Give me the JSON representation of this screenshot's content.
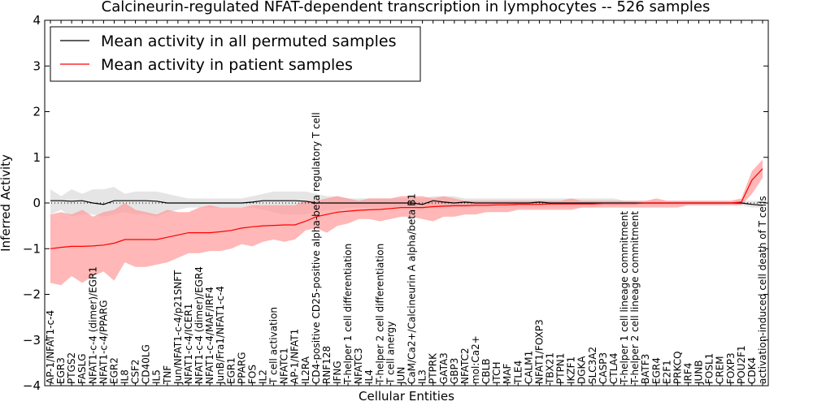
{
  "chart_data": {
    "type": "line",
    "title": "Calcineurin-regulated NFAT-dependent transcription in lymphocytes -- 526 samples",
    "xlabel": "Cellular Entities",
    "ylabel": "Inferred Activity",
    "ylim": [
      -4,
      4
    ],
    "yticks": [
      -4,
      -3,
      -2,
      -1,
      0,
      1,
      2,
      3,
      4
    ],
    "legend_position": "top-left",
    "categories": [
      "AP-1/NFAT1-c-4",
      "EGR3",
      "PTGS2",
      "FASLG",
      "NFAT1-c-4 (dimer)/EGR1",
      "NFAT1-c-4/PPARG",
      "EGR2",
      "IL8",
      "CSF2",
      "CD40LG",
      "IL5",
      "TNF",
      "Jun/NFAT1-c-4/p21SNFT",
      "NFAT1-c-4/ICER1",
      "NFAT1-c-4 (dimer)/EGR4",
      "NFAT1-c-4/MAF/IRF4",
      "JunB/Fra1/NFAT1-c-4",
      "EGR1",
      "PPARG",
      "FOS",
      "IL2",
      "T cell activation",
      "NFATC1",
      "AP-1/NFAT1",
      "IL2RA",
      "CD4-positive CD25-positive alpha-beta regulatory T cell",
      "RNF128",
      "IFNG",
      "T-helper 1 cell differentiation",
      "NFATC3",
      "IL4",
      "T-helper 2 cell differentiation",
      "T cell anergy",
      "JUN",
      "CaM/Ca2+/Calcineurin A alpha/beta B1",
      "IL3",
      "PTPRK",
      "GATA3",
      "GBP3",
      "NFATC2",
      "mol:Ca2+",
      "CBLB",
      "ITCH",
      "MAF",
      "TLE4",
      "CALM1",
      "NFAT1/FOXP3",
      "TBX21",
      "PTPN1",
      "IKZF1",
      "DGKA",
      "SLC3A2",
      "CASP3",
      "CTLA4",
      "T-helper 1 cell lineage commitment",
      "T-helper 2 cell lineage commitment",
      "BATF3",
      "EGR4",
      "E2F1",
      "PRKCQ",
      "IRF4",
      "JUNB",
      "FOSL1",
      "CREM",
      "FOXP3",
      "POU2F1",
      "CDK4",
      "activation-induced cell death of T cells"
    ],
    "series": [
      {
        "name": "Mean activity in all permuted samples",
        "color": "#000000",
        "values": [
          0.05,
          0.05,
          0.04,
          0.05,
          0.0,
          -0.03,
          0.05,
          0.05,
          0.05,
          0.05,
          0.04,
          0.0,
          0.0,
          0.0,
          0.0,
          0.0,
          0.0,
          0.0,
          0.0,
          0.02,
          0.05,
          0.05,
          0.05,
          0.05,
          0.04,
          0.0,
          0.0,
          0.0,
          0.0,
          0.0,
          0.0,
          0.0,
          0.0,
          0.0,
          0.0,
          -0.03,
          0.05,
          0.02,
          0.0,
          0.02,
          0.0,
          0.0,
          0.0,
          0.0,
          0.0,
          0.0,
          0.02,
          0.0,
          0.0,
          0.0,
          0.0,
          0.0,
          0.0,
          0.0,
          0.0,
          0.0,
          0.0,
          0.0,
          0.0,
          0.0,
          0.0,
          0.0,
          0.0,
          0.0,
          0.0,
          0.0,
          -0.03,
          -0.05
        ],
        "band_upper": [
          0.3,
          0.15,
          0.3,
          0.2,
          0.3,
          0.3,
          0.35,
          0.2,
          0.25,
          0.25,
          0.25,
          0.2,
          0.15,
          0.1,
          0.1,
          0.1,
          0.1,
          0.1,
          0.1,
          0.15,
          0.2,
          0.25,
          0.25,
          0.25,
          0.25,
          0.2,
          0.15,
          0.15,
          0.1,
          0.1,
          0.1,
          0.1,
          0.1,
          0.1,
          0.1,
          0.1,
          0.15,
          0.15,
          0.15,
          0.1,
          0.1,
          0.1,
          0.1,
          0.1,
          0.1,
          0.1,
          0.1,
          0.1,
          0.1,
          0.1,
          0.1,
          0.1,
          0.1,
          0.1,
          0.05,
          0.05,
          0.05,
          0.05,
          0.05,
          0.05,
          0.05,
          0.05,
          0.05,
          0.05,
          0.05,
          0.05,
          0.05,
          0.05
        ],
        "band_lower": [
          -0.25,
          -0.15,
          -0.3,
          -0.25,
          -0.25,
          -0.3,
          -0.25,
          -0.2,
          -0.25,
          -0.25,
          -0.3,
          -0.2,
          -0.15,
          -0.1,
          -0.1,
          -0.1,
          -0.1,
          -0.1,
          -0.1,
          -0.1,
          -0.15,
          -0.2,
          -0.25,
          -0.25,
          -0.25,
          -0.2,
          -0.15,
          -0.15,
          -0.1,
          -0.1,
          -0.1,
          -0.1,
          -0.1,
          -0.1,
          -0.1,
          -0.15,
          -0.1,
          -0.1,
          -0.1,
          -0.1,
          -0.1,
          -0.1,
          -0.1,
          -0.1,
          -0.1,
          -0.1,
          -0.1,
          -0.1,
          -0.1,
          -0.1,
          -0.1,
          -0.1,
          -0.05,
          -0.05,
          -0.05,
          -0.05,
          -0.05,
          -0.05,
          -0.05,
          -0.05,
          -0.05,
          -0.05,
          -0.05,
          -0.05,
          -0.05,
          -0.05,
          -0.1,
          -0.1
        ]
      },
      {
        "name": "Mean activity in patient samples",
        "color": "#ff0000",
        "values": [
          -1.0,
          -0.97,
          -0.95,
          -0.95,
          -0.94,
          -0.92,
          -0.88,
          -0.8,
          -0.8,
          -0.8,
          -0.8,
          -0.75,
          -0.7,
          -0.65,
          -0.65,
          -0.65,
          -0.63,
          -0.6,
          -0.55,
          -0.52,
          -0.5,
          -0.49,
          -0.48,
          -0.48,
          -0.4,
          -0.3,
          -0.25,
          -0.2,
          -0.18,
          -0.16,
          -0.15,
          -0.14,
          -0.12,
          -0.1,
          -0.1,
          -0.1,
          -0.08,
          -0.07,
          -0.06,
          -0.06,
          -0.05,
          -0.05,
          -0.04,
          -0.04,
          -0.03,
          -0.03,
          -0.03,
          -0.02,
          -0.02,
          -0.02,
          -0.02,
          -0.02,
          -0.01,
          -0.01,
          -0.01,
          -0.01,
          0.0,
          0.0,
          0.0,
          0.0,
          0.0,
          0.0,
          0.0,
          0.0,
          0.0,
          0.02,
          0.5,
          0.75
        ],
        "band_upper": [
          -0.25,
          -0.2,
          -0.25,
          -0.15,
          -0.3,
          -0.2,
          -0.15,
          0.0,
          -0.15,
          -0.2,
          -0.25,
          -0.15,
          -0.2,
          -0.2,
          -0.1,
          -0.05,
          -0.1,
          -0.1,
          -0.1,
          -0.05,
          -0.05,
          -0.05,
          -0.05,
          -0.05,
          0.05,
          0.05,
          0.1,
          0.15,
          0.1,
          0.05,
          0.1,
          0.1,
          0.1,
          0.15,
          0.15,
          0.15,
          0.1,
          0.15,
          0.1,
          0.05,
          0.05,
          0.05,
          0.05,
          0.05,
          0.05,
          0.05,
          0.05,
          0.05,
          0.05,
          0.1,
          0.05,
          0.05,
          0.05,
          0.05,
          0.05,
          0.05,
          0.05,
          0.1,
          0.05,
          0.05,
          0.05,
          0.05,
          0.05,
          0.05,
          0.05,
          0.1,
          0.7,
          0.95
        ],
        "band_lower": [
          -1.75,
          -1.8,
          -1.6,
          -1.75,
          -1.6,
          -1.5,
          -1.7,
          -1.3,
          -1.4,
          -1.4,
          -1.35,
          -1.3,
          -1.2,
          -1.1,
          -1.1,
          -1.05,
          -1.05,
          -1.0,
          -0.9,
          -0.95,
          -0.85,
          -0.8,
          -0.85,
          -0.8,
          -0.6,
          -0.55,
          -0.65,
          -0.5,
          -0.45,
          -0.35,
          -0.35,
          -0.4,
          -0.35,
          -0.3,
          -0.3,
          -0.35,
          -0.4,
          -0.3,
          -0.3,
          -0.25,
          -0.25,
          -0.2,
          -0.2,
          -0.2,
          -0.15,
          -0.15,
          -0.15,
          -0.15,
          -0.15,
          -0.15,
          -0.1,
          -0.1,
          -0.1,
          -0.1,
          -0.1,
          -0.1,
          -0.1,
          -0.1,
          -0.1,
          -0.1,
          -0.05,
          -0.05,
          -0.05,
          -0.05,
          -0.05,
          -0.05,
          0.2,
          0.55
        ]
      }
    ],
    "colors": {
      "permuted_band": "#d3d3d3",
      "patient_band": "#ff9999",
      "axis": "#000000"
    }
  }
}
